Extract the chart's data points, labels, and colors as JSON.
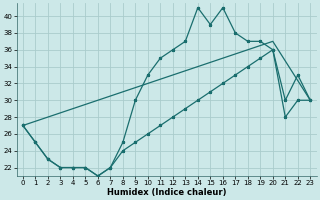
{
  "title": "",
  "xlabel": "Humidex (Indice chaleur)",
  "bg_color": "#cce8e8",
  "grid_color": "#aacccc",
  "line_color": "#1a6e6e",
  "xlim": [
    -0.5,
    23.5
  ],
  "ylim": [
    21.0,
    41.5
  ],
  "yticks": [
    22,
    24,
    26,
    28,
    30,
    32,
    34,
    36,
    38,
    40
  ],
  "xticks": [
    0,
    1,
    2,
    3,
    4,
    5,
    6,
    7,
    8,
    9,
    10,
    11,
    12,
    13,
    14,
    15,
    16,
    17,
    18,
    19,
    20,
    21,
    22,
    23
  ],
  "line1_x": [
    0,
    1,
    2,
    3,
    4,
    5,
    6,
    7,
    8,
    9,
    10,
    11,
    12,
    13,
    14,
    15,
    16,
    17,
    18,
    19,
    20,
    21,
    22,
    23
  ],
  "line1_y": [
    27,
    25,
    23,
    22,
    22,
    22,
    21,
    22,
    25,
    30,
    33,
    35,
    36,
    37,
    41,
    39,
    41,
    38,
    37,
    37,
    36,
    30,
    33,
    30
  ],
  "line2_x": [
    0,
    1,
    2,
    3,
    4,
    5,
    6,
    7,
    8,
    9,
    10,
    11,
    12,
    13,
    14,
    15,
    16,
    17,
    18,
    19,
    20,
    21,
    22,
    23
  ],
  "line2_y": [
    27,
    25,
    23,
    22,
    22,
    22,
    21,
    22,
    24,
    25,
    26,
    27,
    28,
    29,
    30,
    31,
    32,
    33,
    34,
    35,
    36,
    28,
    30,
    30
  ],
  "line3_x": [
    0,
    20,
    23
  ],
  "line3_y": [
    27,
    37,
    30
  ]
}
